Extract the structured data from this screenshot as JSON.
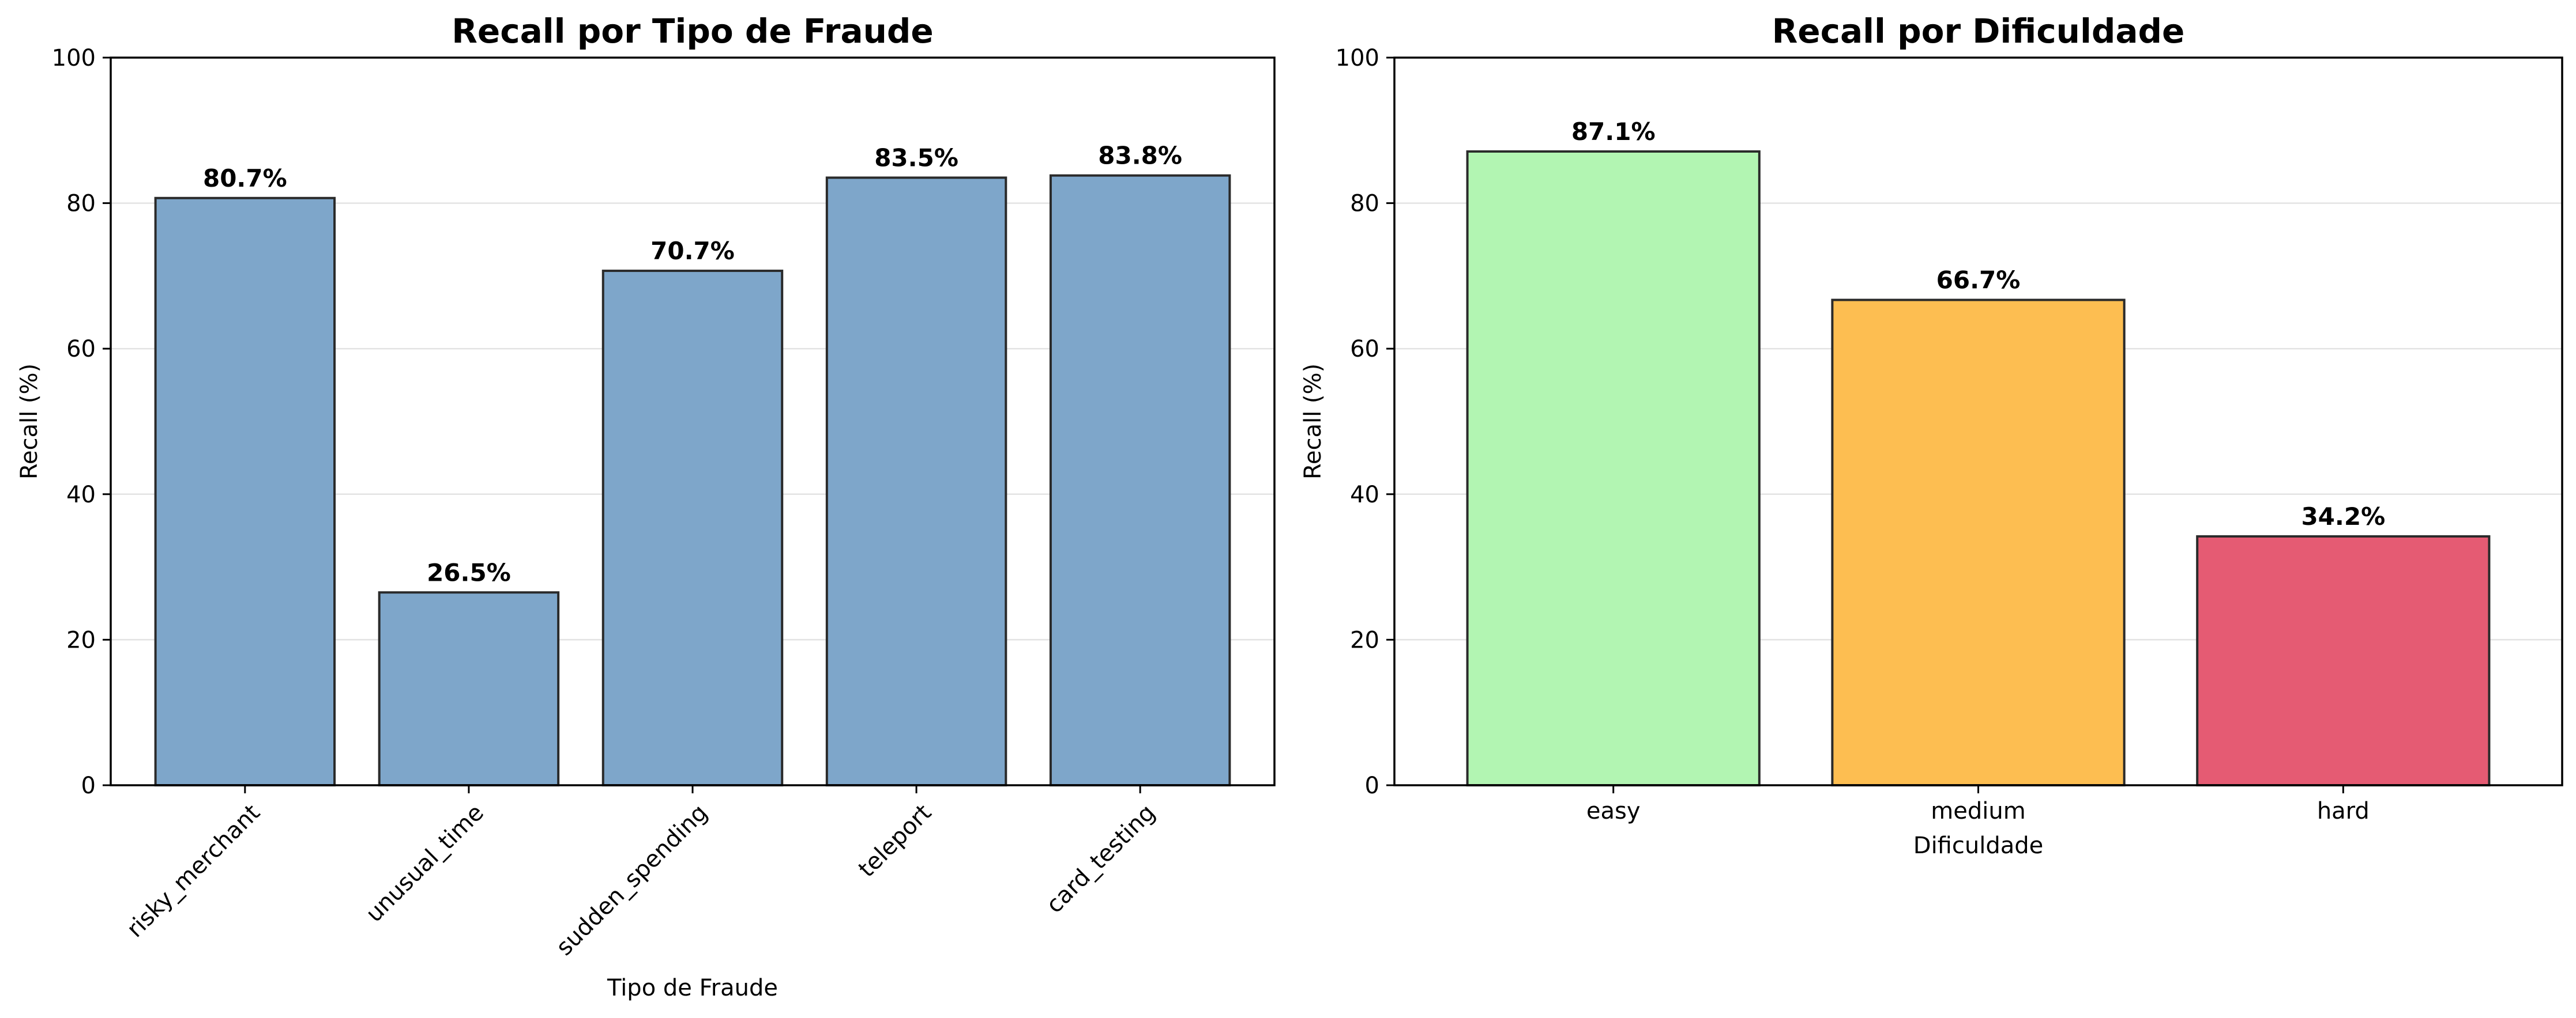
{
  "chart_data": [
    {
      "type": "bar",
      "title": "Recall por Tipo de Fraude",
      "xlabel": "Tipo de Fraude",
      "ylabel": "Recall (%)",
      "ylim": [
        0,
        100
      ],
      "yticks": [
        "0",
        "20",
        "40",
        "60",
        "80",
        "100"
      ],
      "grid": "y",
      "categories": [
        "risky_merchant",
        "unusual_time",
        "sudden_spending",
        "teleport",
        "card_testing"
      ],
      "values": [
        80.7,
        26.5,
        70.7,
        83.5,
        83.8
      ],
      "value_labels": [
        "80.7%",
        "26.5%",
        "70.7%",
        "83.5%",
        "83.8%"
      ],
      "colors": [
        "#7ea6ca",
        "#7ea6ca",
        "#7ea6ca",
        "#7ea6ca",
        "#7ea6ca"
      ],
      "tick_rotation": 45
    },
    {
      "type": "bar",
      "title": "Recall por Dificuldade",
      "xlabel": "Dificuldade",
      "ylabel": "Recall (%)",
      "ylim": [
        0,
        100
      ],
      "yticks": [
        "0",
        "20",
        "40",
        "60",
        "80",
        "100"
      ],
      "grid": "y",
      "categories": [
        "easy",
        "medium",
        "hard"
      ],
      "values": [
        87.1,
        66.7,
        34.2
      ],
      "value_labels": [
        "87.1%",
        "66.7%",
        "34.2%"
      ],
      "colors": [
        "#b2f5b2",
        "#fdbe51",
        "#e55b73"
      ],
      "tick_rotation": 0
    }
  ]
}
